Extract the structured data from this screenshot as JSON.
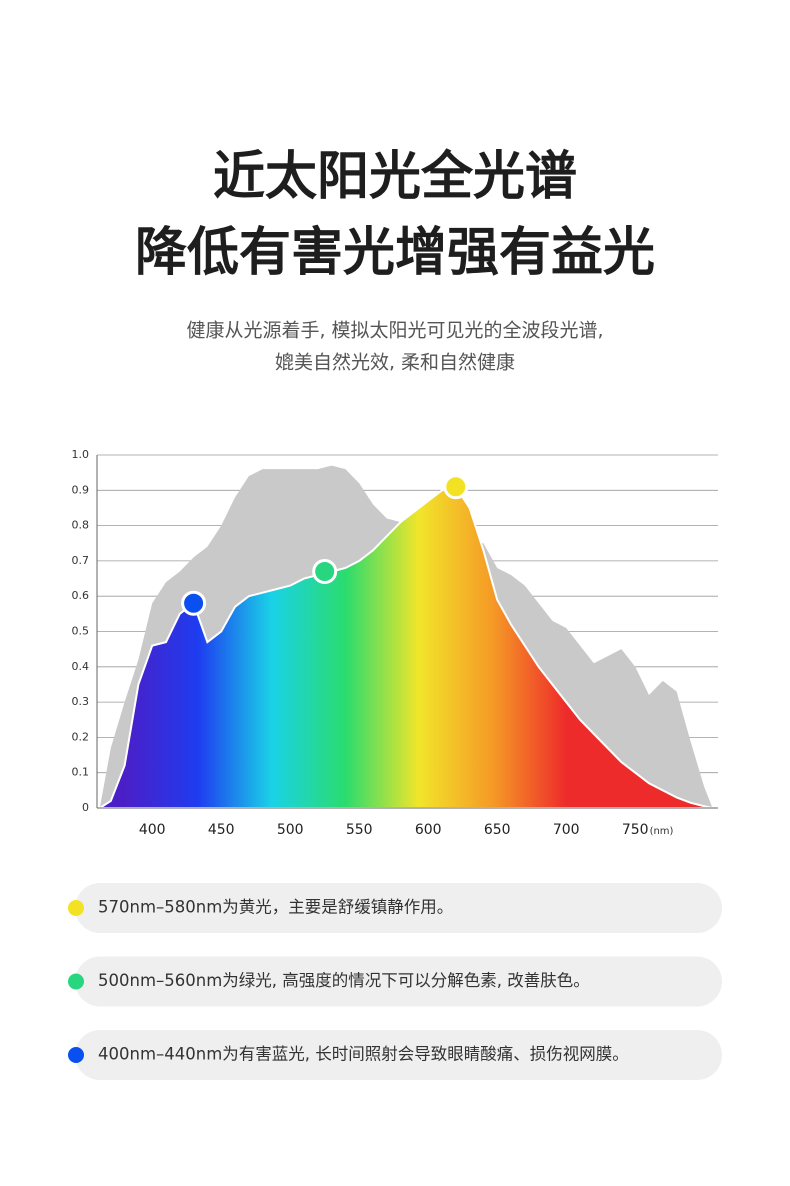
{
  "header": {
    "title_lines": [
      "近太阳光全光谱",
      "降低有害光增强有益光"
    ],
    "subtitle_lines": [
      "健康从光源着手, 模拟太阳光可见光的全波段光谱,",
      "媲美自然光效, 柔和自然健康"
    ]
  },
  "chart_data": {
    "type": "area",
    "x": [
      362,
      370,
      380,
      390,
      400,
      410,
      420,
      430,
      440,
      450,
      460,
      470,
      480,
      490,
      500,
      510,
      520,
      530,
      540,
      550,
      560,
      570,
      580,
      590,
      600,
      610,
      620,
      630,
      640,
      650,
      660,
      670,
      680,
      690,
      700,
      710,
      720,
      730,
      740,
      750,
      760,
      770,
      780,
      790,
      800,
      806
    ],
    "series": [
      {
        "color": "#c9c9c9",
        "values": [
          0,
          0.17,
          0.3,
          0.42,
          0.58,
          0.64,
          0.67,
          0.71,
          0.74,
          0.8,
          0.88,
          0.94,
          0.96,
          0.96,
          0.96,
          0.96,
          0.96,
          0.97,
          0.96,
          0.92,
          0.86,
          0.82,
          0.81,
          0.82,
          0.82,
          0.8,
          0.78,
          0.76,
          0.75,
          0.68,
          0.66,
          0.63,
          0.58,
          0.53,
          0.51,
          0.46,
          0.41,
          0.43,
          0.45,
          0.4,
          0.32,
          0.36,
          0.33,
          0.19,
          0.06,
          0
        ]
      },
      {
        "gradient_colors": [
          "#4b1fc8",
          "#1e3cf0",
          "#1ad2e6",
          "#2adc6e",
          "#f2e52a",
          "#f59a26",
          "#ee2b2b"
        ],
        "values": [
          0,
          0.02,
          0.12,
          0.35,
          0.46,
          0.47,
          0.55,
          0.58,
          0.47,
          0.5,
          0.57,
          0.6,
          0.61,
          0.62,
          0.63,
          0.65,
          0.66,
          0.67,
          0.68,
          0.7,
          0.73,
          0.77,
          0.81,
          0.84,
          0.87,
          0.9,
          0.91,
          0.85,
          0.73,
          0.59,
          0.52,
          0.46,
          0.4,
          0.35,
          0.3,
          0.25,
          0.21,
          0.17,
          0.13,
          0.1,
          0.07,
          0.05,
          0.03,
          0.015,
          0.005,
          0
        ]
      }
    ],
    "markers": [
      {
        "x": 430,
        "y": 0.58,
        "color": "#0a4ff0"
      },
      {
        "x": 525,
        "y": 0.67,
        "color": "#27d67e"
      },
      {
        "x": 620,
        "y": 0.91,
        "color": "#f3e123"
      }
    ],
    "xlim": [
      360,
      810
    ],
    "xticks": [
      400,
      450,
      500,
      550,
      600,
      650,
      700,
      750
    ],
    "x_unit": "(nm)",
    "ylim": [
      0,
      1
    ],
    "yticks": [
      0,
      0.1,
      0.2,
      0.3,
      0.4,
      0.5,
      0.6,
      0.7,
      0.8,
      0.9,
      {
        "value": 1,
        "label": "1.0"
      }
    ],
    "grid": true
  },
  "notes": [
    {
      "color": "#f3e123",
      "text": "570nm–580nm为黄光，主要是舒缓镇静作用。"
    },
    {
      "color": "#27d67e",
      "text": "500nm–560nm为绿光, 高强度的情况下可以分解色素, 改善肤色。"
    },
    {
      "color": "#0a4ff0",
      "text": "400nm–440nm为有害蓝光, 长时间照射会导致眼睛酸痛、损伤视网膜。"
    }
  ]
}
